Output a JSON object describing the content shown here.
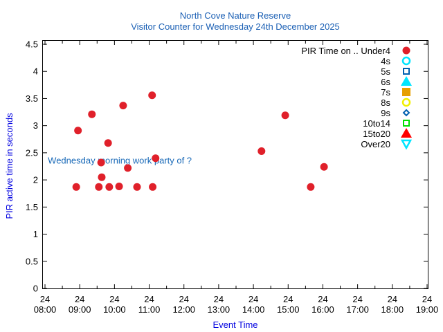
{
  "chart_data": {
    "type": "scatter",
    "title": "North Cove Nature Reserve",
    "subtitle": "Visitor Counter for Wednesday 24th December 2025",
    "xlabel": "Event Time",
    "ylabel": "PIR active time in seconds",
    "xlim": [
      "08:00",
      "19:00"
    ],
    "ylim": [
      0,
      4.5
    ],
    "x_tick_date": "24",
    "x_ticks": [
      "08:00",
      "09:00",
      "10:00",
      "11:00",
      "12:00",
      "13:00",
      "14:00",
      "15:00",
      "16:00",
      "17:00",
      "18:00",
      "19:00"
    ],
    "y_ticks": [
      "0",
      "0.5",
      "1",
      "1.5",
      "2",
      "2.5",
      "3",
      "3.5",
      "4",
      "4.5"
    ],
    "y_tick_values": [
      0,
      0.5,
      1,
      1.5,
      2,
      2.5,
      3,
      3.5,
      4,
      4.5
    ],
    "grid": false,
    "legend_placement": "top-right",
    "legend_title": "PIR Time on ..",
    "legend": [
      {
        "name": "Under4",
        "marker": "filled-circle",
        "color": "#e0202a"
      },
      {
        "name": "4s",
        "marker": "open-circle",
        "color": "#00e5ff"
      },
      {
        "name": "5s",
        "marker": "open-square",
        "color": "#0060b0"
      },
      {
        "name": "6s",
        "marker": "filled-triangle",
        "color": "#00e5ff"
      },
      {
        "name": "7s",
        "marker": "filled-square",
        "color": "#e69f00"
      },
      {
        "name": "8s",
        "marker": "open-circle",
        "color": "#f0f000"
      },
      {
        "name": "9s",
        "marker": "open-diamond",
        "color": "#0060b0"
      },
      {
        "name": "10to14",
        "marker": "open-square",
        "color": "#00e000"
      },
      {
        "name": "15to20",
        "marker": "filled-triangle",
        "color": "#ff0000"
      },
      {
        "name": "Over20",
        "marker": "open-triangle-down",
        "color": "#00e5ff"
      }
    ],
    "annotation": {
      "text": "Wednesday morning work party of ?",
      "x": "08:05",
      "y": 2.35,
      "color": "#1a6ab8"
    },
    "series": [
      {
        "name": "Under4",
        "points": [
          {
            "x": "08:54",
            "y": 1.87
          },
          {
            "x": "08:57",
            "y": 2.91
          },
          {
            "x": "09:21",
            "y": 3.21
          },
          {
            "x": "09:37",
            "y": 2.32
          },
          {
            "x": "09:38",
            "y": 2.05
          },
          {
            "x": "09:33",
            "y": 1.87
          },
          {
            "x": "09:49",
            "y": 2.68
          },
          {
            "x": "09:51",
            "y": 1.87
          },
          {
            "x": "10:08",
            "y": 1.88
          },
          {
            "x": "10:15",
            "y": 3.37
          },
          {
            "x": "10:23",
            "y": 2.22
          },
          {
            "x": "10:39",
            "y": 1.87
          },
          {
            "x": "11:05",
            "y": 3.56
          },
          {
            "x": "11:06",
            "y": 1.87
          },
          {
            "x": "11:11",
            "y": 2.4
          },
          {
            "x": "14:14",
            "y": 2.53
          },
          {
            "x": "14:55",
            "y": 3.19
          },
          {
            "x": "15:39",
            "y": 1.87
          },
          {
            "x": "16:02",
            "y": 2.24
          }
        ]
      }
    ]
  }
}
